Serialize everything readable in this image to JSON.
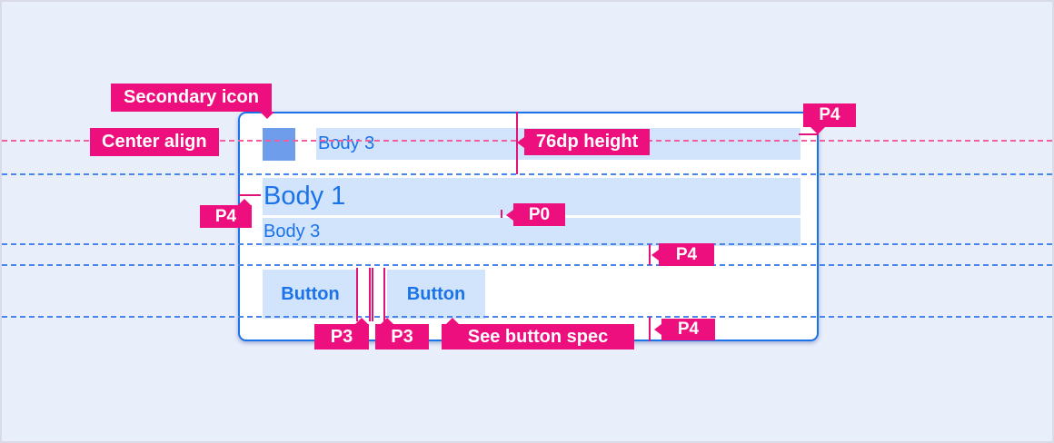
{
  "card": {
    "row1_text": "Body 3",
    "row2_text": "Body 1",
    "row3_text": "Body 3",
    "button1_label": "Button",
    "button2_label": "Button"
  },
  "annotations": {
    "secondary_icon": "Secondary icon",
    "center_align": "Center align",
    "height_76dp": "76dp height",
    "p4_top_right": "P4",
    "p0": "P0",
    "p4_left": "P4",
    "p4_mid_right": "P4",
    "p4_bottom_right": "P4",
    "p3_first": "P3",
    "p3_second": "P3",
    "see_button_spec": "See button spec"
  },
  "colors": {
    "annotation_pink": "#ec0f7d",
    "measure_pink": "#e0137a",
    "guide_pink_dashed": "#f0609f",
    "guide_blue_dashed": "#4a86e8",
    "card_border_blue": "#1a73e8",
    "text_blue": "#1a73e8",
    "highlight_blue": "#d2e3fc",
    "icon_blue": "#6d9deb",
    "page_background": "#e9eefb",
    "card_background": "#ffffff"
  }
}
